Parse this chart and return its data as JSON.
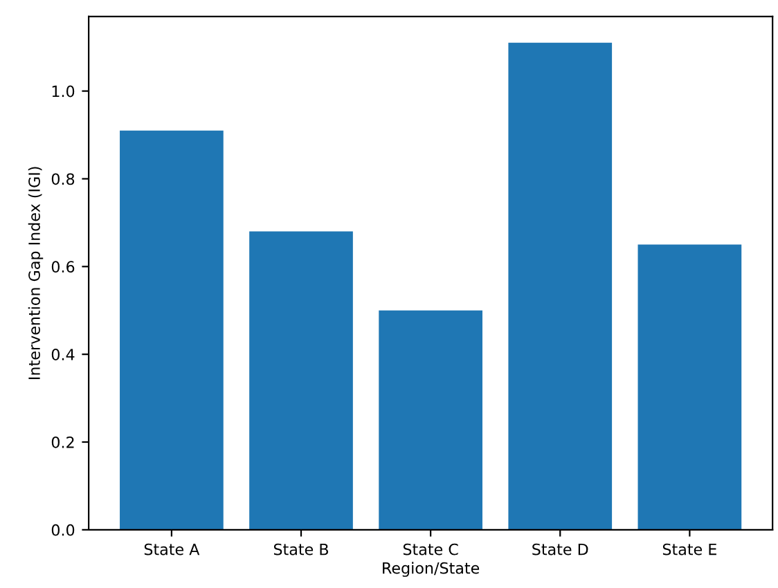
{
  "chart_data": {
    "type": "bar",
    "xlabel": "Region/State",
    "ylabel": "Intervention Gap Index (IGI)",
    "categories": [
      "State A",
      "State B",
      "State C",
      "State D",
      "State E"
    ],
    "values": [
      0.91,
      0.68,
      0.5,
      1.11,
      0.65
    ],
    "color": "#1f77b4",
    "ylim": [
      0,
      1.17
    ],
    "yticks": [
      {
        "value": 0,
        "label": "0.0"
      },
      {
        "value": 0.2,
        "label": "0.2"
      },
      {
        "value": 0.4,
        "label": "0.4"
      },
      {
        "value": 0.6,
        "label": "0.6"
      },
      {
        "value": 0.8,
        "label": "0.8"
      },
      {
        "value": 1.0,
        "label": "1.0"
      }
    ],
    "grid": false,
    "legend": false
  }
}
